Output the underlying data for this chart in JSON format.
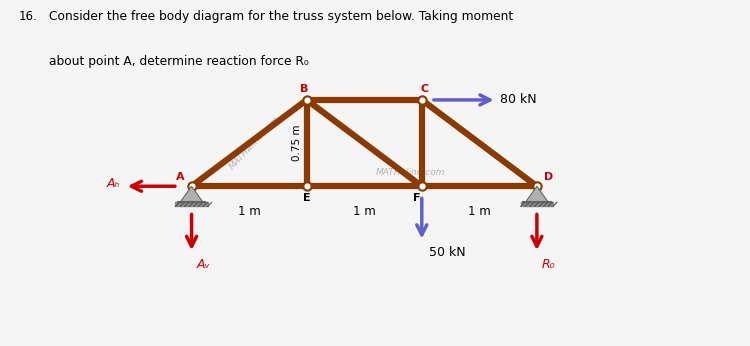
{
  "title_number": "16.",
  "title_line1": "Consider the free body diagram for the truss system below. Taking moment",
  "title_line2": "about point A, determine reaction force R₀",
  "bg_color": "#f5f5f5",
  "truss_color": "#8B3A00",
  "truss_lw": 4.5,
  "purple": "#6060cc",
  "red": "#cc0000",
  "support_body": "#b0b0b0",
  "support_edge": "#666666",
  "hatch_color": "#888888",
  "watermark1": "MATHalino.com",
  "watermark2": "MATHalino.com",
  "node_labels": [
    "A",
    "B",
    "C",
    "D",
    "E",
    "F"
  ],
  "dim_label": "1 m",
  "vert_dim_label": "0.75 m",
  "label_80kN": "80 kN",
  "label_50kN": "50 kN",
  "label_AH": "Aₕ",
  "label_AV": "Aᵥ",
  "label_Ro": "R₀"
}
